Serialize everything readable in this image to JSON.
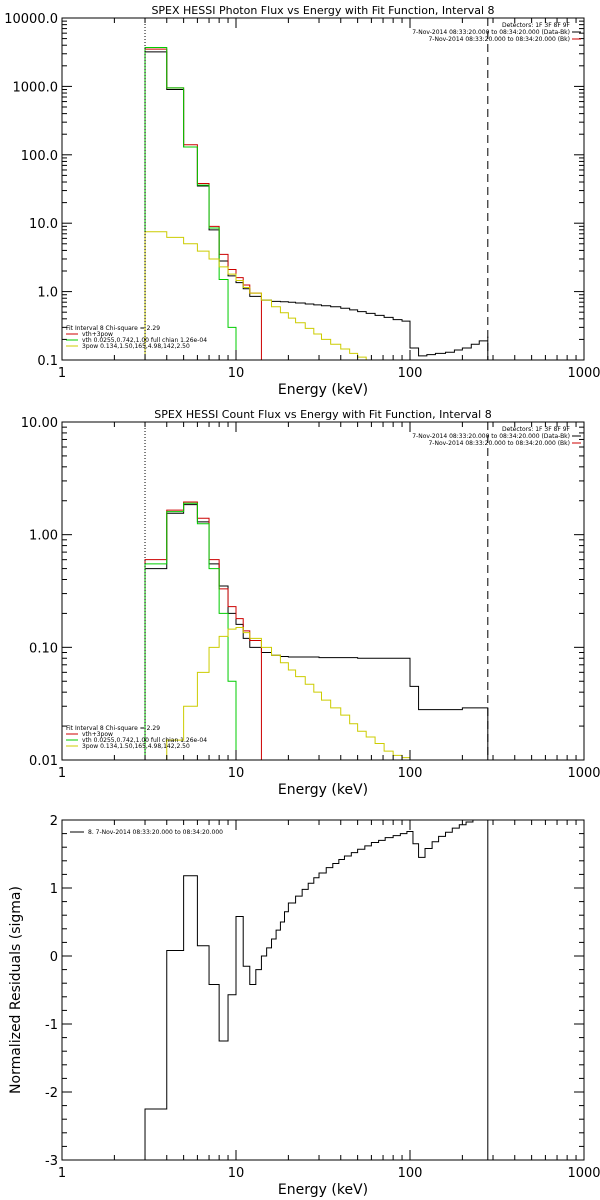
{
  "chart_data": [
    {
      "type": "line",
      "title": "SPEX HESSI Photon Flux vs Energy with Fit Function, Interval 8",
      "xlabel": "Energy (keV)",
      "ylabel": "",
      "xscale": "log",
      "yscale": "log",
      "xlim": [
        1,
        1000
      ],
      "ylim": [
        0.1,
        10000
      ],
      "x_ticks": [
        "1",
        "10",
        "100",
        "1000"
      ],
      "y_ticks": [
        "0.1",
        "1.0",
        "10.0",
        "100.0",
        "1000.0",
        "10000.0"
      ],
      "info_lines": [
        "Detectors: 1F 3F 8F 9F",
        "7-Nov-2014 08:33:20.000 to 08:34:20.000 (Data-Bk)",
        "7-Nov-2014 08:33:20.000 to 08:34:20.000 (Bk)"
      ],
      "legend_title": "Fit Interval  8   Chi-square = 2.29",
      "legend_entries": [
        {
          "label": "vth+3pow",
          "color": "#cc0000"
        },
        {
          "label": "vth 0.0255,0.742,1.00  full chian 1.26e-04",
          "color": "#00cc00"
        },
        {
          "label": "3pow 0.134,1.50,165,4.98,142,2.50",
          "color": "#cccc00"
        }
      ],
      "vlines": [
        {
          "x": 3,
          "style": "dotted"
        },
        {
          "x": 280,
          "style": "dashed"
        }
      ],
      "series": [
        {
          "name": "Data-Bk",
          "color": "#000000",
          "x": [
            3,
            4,
            5,
            6,
            7,
            8,
            9,
            10,
            11,
            12,
            14,
            16,
            18,
            20,
            22,
            25,
            28,
            31,
            35,
            40,
            45,
            50,
            56,
            63,
            71,
            80,
            90,
            100,
            112,
            125,
            140,
            160,
            180,
            200,
            225,
            250,
            280
          ],
          "y": [
            3200,
            900,
            130,
            35,
            8,
            2.8,
            1.7,
            1.35,
            1.1,
            0.85,
            0.75,
            0.72,
            0.71,
            0.7,
            0.68,
            0.66,
            0.64,
            0.62,
            0.6,
            0.57,
            0.54,
            0.51,
            0.48,
            0.45,
            0.42,
            0.39,
            0.37,
            0.15,
            0.115,
            0.12,
            0.125,
            0.13,
            0.14,
            0.15,
            0.17,
            0.19,
            0.22
          ]
        },
        {
          "name": "vth+3pow",
          "color": "#cc0000",
          "x": [
            3,
            4,
            5,
            6,
            7,
            8,
            9,
            10,
            11,
            12,
            14
          ],
          "y": [
            3500,
            950,
            140,
            38,
            9,
            3.5,
            2.1,
            1.6,
            1.25,
            0.95,
            0.8
          ]
        },
        {
          "name": "vth",
          "color": "#00cc00",
          "x": [
            3,
            4,
            5,
            6,
            7,
            8,
            9,
            10
          ],
          "y": [
            3700,
            950,
            130,
            36,
            8.5,
            1.5,
            0.3,
            0.1
          ]
        },
        {
          "name": "3pow",
          "color": "#cccc00",
          "x": [
            3,
            4,
            5,
            6,
            7,
            8,
            9,
            10,
            11,
            12,
            14,
            16,
            18,
            20,
            22,
            25,
            28,
            31,
            35,
            40,
            45,
            50,
            56,
            63,
            71
          ],
          "y": [
            7.5,
            6.2,
            5.0,
            3.9,
            3.0,
            2.3,
            1.8,
            1.45,
            1.15,
            0.95,
            0.75,
            0.6,
            0.49,
            0.41,
            0.35,
            0.29,
            0.24,
            0.2,
            0.17,
            0.145,
            0.125,
            0.11,
            0.1,
            0.1,
            0.1
          ]
        }
      ]
    },
    {
      "type": "line",
      "title": "SPEX HESSI Count Flux vs Energy with Fit Function, Interval 8",
      "xlabel": "Energy (keV)",
      "ylabel": "",
      "xscale": "log",
      "yscale": "log",
      "xlim": [
        1,
        1000
      ],
      "ylim": [
        0.01,
        10
      ],
      "x_ticks": [
        "1",
        "10",
        "100",
        "1000"
      ],
      "y_ticks": [
        "0.01",
        "0.10",
        "1.00",
        "10.00"
      ],
      "info_lines": [
        "Detectors: 1F 3F 8F 9F",
        "7-Nov-2014 08:33:20.000 to 08:34:20.000 (Data-Bk)",
        "7-Nov-2014 08:33:20.000 to 08:34:20.000 (Bk)"
      ],
      "legend_title": "Fit Interval  8   Chi-square = 2.29",
      "legend_entries": [
        {
          "label": "vth+3pow",
          "color": "#cc0000"
        },
        {
          "label": "vth 0.0255,0.742,1.00  full chian 1.26e-04",
          "color": "#00cc00"
        },
        {
          "label": "3pow 0.134,1.50,165,4.98,142,2.50",
          "color": "#cccc00"
        }
      ],
      "vlines": [
        {
          "x": 3,
          "style": "dotted"
        },
        {
          "x": 280,
          "style": "dashed"
        }
      ],
      "series": [
        {
          "name": "Data-Bk",
          "color": "#000000",
          "x": [
            3,
            4,
            5,
            6,
            7,
            8,
            9,
            10,
            11,
            12,
            14,
            16,
            18,
            20,
            25,
            30,
            40,
            50,
            60,
            70,
            80,
            90,
            100,
            112,
            125,
            140,
            160,
            200,
            280
          ],
          "y": [
            0.5,
            1.55,
            1.85,
            1.3,
            0.55,
            0.35,
            0.2,
            0.16,
            0.12,
            0.1,
            0.09,
            0.085,
            0.083,
            0.082,
            0.082,
            0.081,
            0.081,
            0.08,
            0.08,
            0.08,
            0.08,
            0.08,
            0.045,
            0.028,
            0.028,
            0.028,
            0.028,
            0.029,
            0.029
          ]
        },
        {
          "name": "vth+3pow",
          "color": "#cc0000",
          "x": [
            3,
            4,
            5,
            6,
            7,
            8,
            9,
            10,
            11,
            12,
            14
          ],
          "y": [
            0.6,
            1.65,
            1.95,
            1.4,
            0.6,
            0.33,
            0.23,
            0.18,
            0.14,
            0.115,
            0.1
          ]
        },
        {
          "name": "vth",
          "color": "#00cc00",
          "x": [
            3,
            4,
            5,
            6,
            7,
            8,
            9,
            10
          ],
          "y": [
            0.55,
            1.6,
            1.9,
            1.25,
            0.5,
            0.2,
            0.05,
            0.01
          ]
        },
        {
          "name": "3pow",
          "color": "#cccc00",
          "x": [
            3,
            4,
            5,
            6,
            7,
            8,
            9,
            10,
            11,
            12,
            14,
            16,
            18,
            20,
            22,
            25,
            28,
            31,
            35,
            40,
            45,
            50,
            56,
            63,
            71,
            80,
            90,
            100
          ],
          "y": [
            0.01,
            0.015,
            0.03,
            0.06,
            0.1,
            0.125,
            0.145,
            0.15,
            0.135,
            0.12,
            0.1,
            0.085,
            0.073,
            0.063,
            0.055,
            0.047,
            0.04,
            0.034,
            0.029,
            0.025,
            0.021,
            0.018,
            0.016,
            0.014,
            0.012,
            0.011,
            0.0105,
            0.01
          ]
        }
      ]
    },
    {
      "type": "line",
      "title": "",
      "xlabel": "Energy (keV)",
      "ylabel": "Normalized Residuals (sigma)",
      "xscale": "log",
      "xlim": [
        1,
        1000
      ],
      "ylim": [
        -3,
        2
      ],
      "x_ticks": [
        "1",
        "10",
        "100",
        "1000"
      ],
      "y_ticks": [
        "-3",
        "-2",
        "-1",
        "0",
        "1",
        "2"
      ],
      "legend_entries": [
        {
          "label": "8. 7-Nov-2014 08:33:20.000 to 08:34:20.000",
          "color": "#000000"
        }
      ],
      "series": [
        {
          "name": "8.",
          "color": "#000000",
          "x": [
            3,
            4,
            5,
            6,
            7,
            8,
            9,
            10,
            11,
            12,
            13,
            14,
            15,
            16,
            17,
            18,
            19,
            20,
            22,
            24,
            26,
            28,
            30,
            33,
            36,
            39,
            42,
            46,
            50,
            55,
            60,
            66,
            72,
            80,
            88,
            96,
            104,
            112,
            122,
            134,
            146,
            160,
            175,
            192,
            210,
            230,
            255,
            280
          ],
          "y": [
            -2.25,
            0.08,
            1.18,
            0.15,
            -0.42,
            -1.25,
            -0.57,
            0.58,
            -0.15,
            -0.42,
            -0.2,
            0.0,
            0.12,
            0.25,
            0.38,
            0.5,
            0.65,
            0.78,
            0.88,
            0.98,
            1.07,
            1.15,
            1.22,
            1.3,
            1.36,
            1.42,
            1.47,
            1.52,
            1.57,
            1.62,
            1.67,
            1.7,
            1.74,
            1.77,
            1.8,
            1.83,
            1.65,
            1.45,
            1.58,
            1.68,
            1.76,
            1.82,
            1.88,
            1.93,
            1.97,
            2.0,
            2.03,
            2.05
          ]
        }
      ]
    }
  ]
}
